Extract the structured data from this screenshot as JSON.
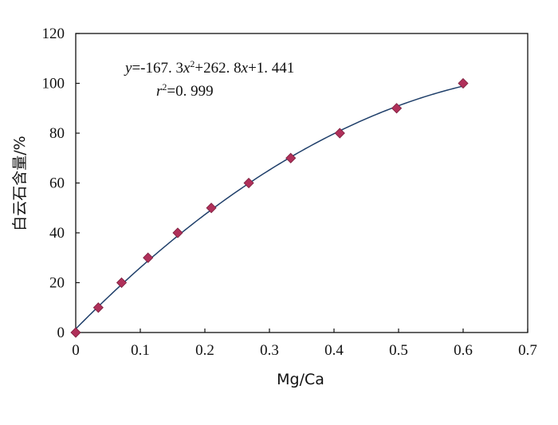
{
  "chart_data": {
    "type": "scatter",
    "xlabel": "Mg/Ca",
    "ylabel": "白云石含量/%",
    "xlim": [
      0,
      0.7
    ],
    "ylim": [
      0,
      120
    ],
    "x_ticks": [
      "0",
      "0.1",
      "0.2",
      "0.3",
      "0.4",
      "0.5",
      "0.6",
      "0.7"
    ],
    "y_ticks": [
      "0",
      "20",
      "40",
      "60",
      "80",
      "100",
      "120"
    ],
    "grid": false,
    "series": [
      {
        "marker": "diamond",
        "color": "#b0305a",
        "x": [
          0,
          0.035,
          0.071,
          0.112,
          0.158,
          0.21,
          0.268,
          0.333,
          0.409,
          0.497,
          0.6
        ],
        "y": [
          0,
          10,
          20,
          30,
          40,
          50,
          60,
          70,
          80,
          90,
          100
        ]
      }
    ],
    "fit": {
      "color": "#1f3f6a",
      "coefficients": {
        "a": -167.3,
        "b": 262.8,
        "c": 1.441
      },
      "x_range": [
        0,
        0.6
      ],
      "equation": {
        "y_var": "y",
        "part1": "=-167. 3",
        "x_var": "x",
        "sup": "2",
        "part2": "+262. 8",
        "x_var2": "x",
        "part3": "+1. 441"
      },
      "r2": {
        "r_var": "r",
        "sup": "2",
        "value_text": "=0. 999"
      }
    }
  }
}
